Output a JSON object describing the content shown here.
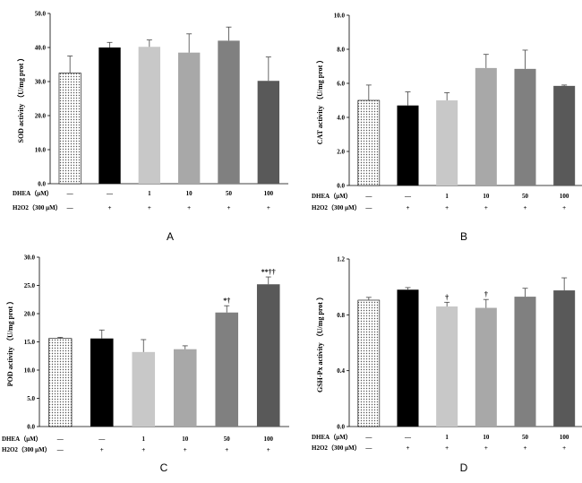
{
  "chart_data": [
    {
      "type": "bar",
      "panel": "A",
      "ylabel": "SOD activity （U/mg prot ）",
      "ylim": [
        0,
        50
      ],
      "yticks": [
        "0.0",
        "10.0",
        "20.0",
        "30.0",
        "40.0",
        "50.0"
      ],
      "values": [
        32.5,
        40.0,
        40.2,
        38.5,
        42.0,
        30.2
      ],
      "errors": [
        5.0,
        1.5,
        2.0,
        5.5,
        4.0,
        7.0
      ],
      "annotations": [
        "",
        "",
        "",
        "",
        "",
        ""
      ],
      "row1_label": "DHEA（μM）",
      "row1_values": [
        "—",
        "—",
        "1",
        "10",
        "50",
        "100"
      ],
      "row2_label": "H2O2（300 μM）",
      "row2_values": [
        "—",
        "+",
        "+",
        "+",
        "+",
        "+"
      ]
    },
    {
      "type": "bar",
      "panel": "B",
      "ylabel": "CAT activity （U/mg prot ）",
      "ylim": [
        0,
        10
      ],
      "yticks": [
        "0.0",
        "2.0",
        "4.0",
        "6.0",
        "8.0",
        "10.0"
      ],
      "values": [
        5.0,
        4.7,
        5.0,
        6.9,
        6.85,
        5.85
      ],
      "errors": [
        0.9,
        0.8,
        0.45,
        0.8,
        1.1,
        0.05
      ],
      "annotations": [
        "",
        "",
        "",
        "",
        "",
        ""
      ],
      "row1_label": "DHEA（μM）",
      "row1_values": [
        "—",
        "—",
        "1",
        "10",
        "50",
        "100"
      ],
      "row2_label": "H2O2（300 μM）",
      "row2_values": [
        "—",
        "+",
        "+",
        "+",
        "+",
        "+"
      ]
    },
    {
      "type": "bar",
      "panel": "C",
      "ylabel": "POD activity （U/mg prot ）",
      "ylim": [
        0,
        30
      ],
      "yticks": [
        "0.0",
        "5.0",
        "10.0",
        "15.0",
        "20.0",
        "25.0",
        "30.0"
      ],
      "values": [
        15.6,
        15.6,
        13.2,
        13.7,
        20.2,
        25.2
      ],
      "errors": [
        0.2,
        1.5,
        2.2,
        0.6,
        1.2,
        1.3
      ],
      "annotations": [
        "",
        "",
        "",
        "",
        "*†",
        "**††"
      ],
      "row1_label": "DHEA（μM）",
      "row1_values": [
        "—",
        "—",
        "1",
        "10",
        "50",
        "100"
      ],
      "row2_label": "H2O2（300 μM）",
      "row2_values": [
        "—",
        "+",
        "+",
        "+",
        "+",
        "+"
      ]
    },
    {
      "type": "bar",
      "panel": "D",
      "ylabel": "GSH-Px activity （U/mg prot ）",
      "ylim": [
        0,
        1.2
      ],
      "yticks": [
        "0.0",
        "0.4",
        "0.8",
        "1.2"
      ],
      "values": [
        0.905,
        0.98,
        0.86,
        0.85,
        0.93,
        0.975
      ],
      "errors": [
        0.02,
        0.015,
        0.03,
        0.06,
        0.06,
        0.09
      ],
      "annotations": [
        "",
        "",
        "†",
        "†",
        "",
        ""
      ],
      "row1_label": "DHEA（μM）",
      "row1_values": [
        "—",
        "—",
        "1",
        "10",
        "50",
        "100"
      ],
      "row2_label": "H2O2（300 μM）",
      "row2_values": [
        "—",
        "+",
        "+",
        "+",
        "+",
        "+"
      ]
    }
  ],
  "style": {
    "bar_fills": [
      "pattern-dots",
      "#000000",
      "#c8c8c8",
      "#a8a8a8",
      "#808080",
      "#595959"
    ]
  }
}
